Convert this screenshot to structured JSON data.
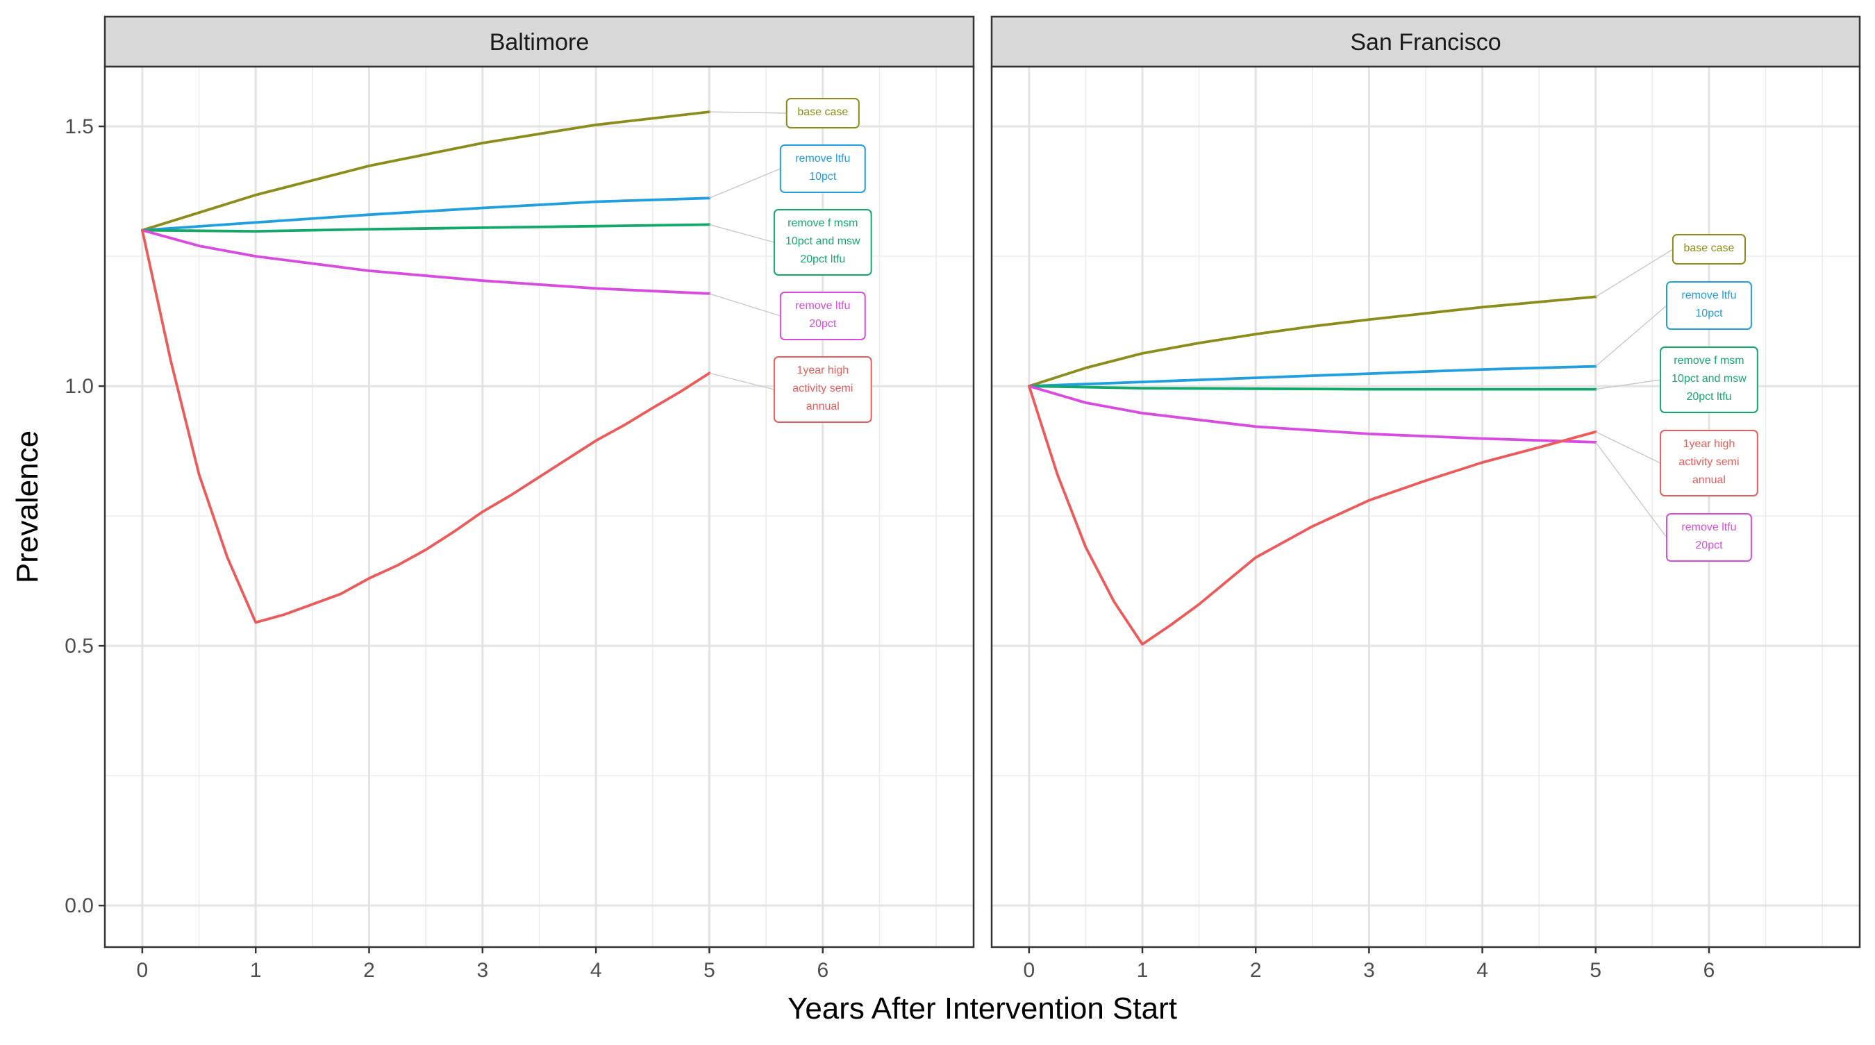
{
  "chart_data": {
    "type": "line",
    "xlabel": "Years After Intervention Start",
    "ylabel": "Prevalence",
    "xlim": [
      -0.33,
      7.33
    ],
    "ylim": [
      -0.08,
      1.615
    ],
    "x_ticks": [
      0,
      1,
      2,
      3,
      4,
      5,
      6
    ],
    "y_ticks": [
      0.0,
      0.5,
      1.0,
      1.5
    ],
    "y_tick_labels": [
      "0.0",
      "0.5",
      "1.0",
      "1.5"
    ],
    "grid": true,
    "legend": "direct labels at line ends",
    "panels": [
      {
        "title": "Baltimore",
        "series": [
          {
            "name": "base case",
            "color": "#8c8c1a",
            "x": [
              0,
              1,
              2,
              3,
              4,
              5
            ],
            "y": [
              1.3,
              1.368,
              1.424,
              1.468,
              1.503,
              1.528
            ]
          },
          {
            "name": "remove ltfu 10pct",
            "color": "#1f9ee0",
            "x": [
              0,
              1,
              2,
              3,
              4,
              5
            ],
            "y": [
              1.3,
              1.315,
              1.33,
              1.343,
              1.355,
              1.362
            ]
          },
          {
            "name": "remove f msm 10pct and msw 20pct ltfu",
            "color": "#12a86a",
            "x": [
              0,
              1,
              2,
              3,
              4,
              5
            ],
            "y": [
              1.3,
              1.298,
              1.302,
              1.305,
              1.308,
              1.311
            ]
          },
          {
            "name": "remove ltfu 20pct",
            "color": "#d94be0",
            "x": [
              0,
              0.5,
              1,
              2,
              3,
              4,
              5
            ],
            "y": [
              1.3,
              1.27,
              1.25,
              1.222,
              1.203,
              1.188,
              1.178
            ]
          },
          {
            "name": "1year high activity semi annual",
            "color": "#ec5a5a",
            "x": [
              0,
              0.25,
              0.5,
              0.75,
              1,
              1.25,
              1.5,
              1.75,
              2,
              2.25,
              2.5,
              2.75,
              3,
              3.25,
              3.5,
              3.75,
              4,
              4.25,
              4.5,
              4.75,
              5
            ],
            "y": [
              1.3,
              1.05,
              0.83,
              0.67,
              0.545,
              0.56,
              0.58,
              0.6,
              0.63,
              0.655,
              0.685,
              0.72,
              0.758,
              0.79,
              0.825,
              0.86,
              0.895,
              0.925,
              0.958,
              0.99,
              1.025
            ]
          }
        ],
        "labels": [
          {
            "series": 0,
            "lines": [
              "base case"
            ]
          },
          {
            "series": 1,
            "lines": [
              "remove ltfu",
              "10pct"
            ]
          },
          {
            "series": 2,
            "lines": [
              "remove f msm",
              "10pct and msw",
              "20pct ltfu"
            ]
          },
          {
            "series": 3,
            "lines": [
              "remove ltfu",
              "20pct"
            ]
          },
          {
            "series": 4,
            "lines": [
              "1year high",
              "activity semi",
              "annual"
            ]
          }
        ]
      },
      {
        "title": "San Francisco",
        "series": [
          {
            "name": "base case",
            "color": "#8c8c1a",
            "x": [
              0,
              0.5,
              1,
              1.5,
              2,
              2.5,
              3,
              3.5,
              4,
              4.5,
              5
            ],
            "y": [
              1.0,
              1.035,
              1.063,
              1.083,
              1.1,
              1.115,
              1.128,
              1.14,
              1.152,
              1.162,
              1.172
            ]
          },
          {
            "name": "remove ltfu 10pct",
            "color": "#1f9ee0",
            "x": [
              0,
              1,
              2,
              3,
              4,
              5
            ],
            "y": [
              1.0,
              1.008,
              1.016,
              1.024,
              1.032,
              1.038
            ]
          },
          {
            "name": "remove f msm 10pct and msw 20pct ltfu",
            "color": "#12a86a",
            "x": [
              0,
              1,
              2,
              3,
              4,
              5
            ],
            "y": [
              1.0,
              0.996,
              0.995,
              0.994,
              0.994,
              0.994
            ]
          },
          {
            "name": "remove ltfu 20pct",
            "color": "#d94be0",
            "x": [
              0,
              0.5,
              1,
              2,
              3,
              4,
              5
            ],
            "y": [
              1.0,
              0.968,
              0.948,
              0.922,
              0.908,
              0.899,
              0.892
            ]
          },
          {
            "name": "1year high activity semi annual",
            "color": "#ec5a5a",
            "x": [
              0,
              0.25,
              0.5,
              0.75,
              1,
              1.25,
              1.5,
              2,
              2.5,
              3,
              3.5,
              4,
              4.5,
              5
            ],
            "y": [
              1.0,
              0.83,
              0.69,
              0.585,
              0.503,
              0.54,
              0.58,
              0.67,
              0.73,
              0.78,
              0.818,
              0.853,
              0.882,
              0.912
            ]
          }
        ],
        "labels": [
          {
            "series": 0,
            "lines": [
              "base case"
            ]
          },
          {
            "series": 1,
            "lines": [
              "remove ltfu",
              "10pct"
            ]
          },
          {
            "series": 2,
            "lines": [
              "remove f msm",
              "10pct and msw",
              "20pct ltfu"
            ]
          },
          {
            "series": 4,
            "lines": [
              "1year high",
              "activity semi",
              "annual"
            ]
          },
          {
            "series": 3,
            "lines": [
              "remove ltfu",
              "20pct"
            ]
          }
        ]
      }
    ]
  }
}
